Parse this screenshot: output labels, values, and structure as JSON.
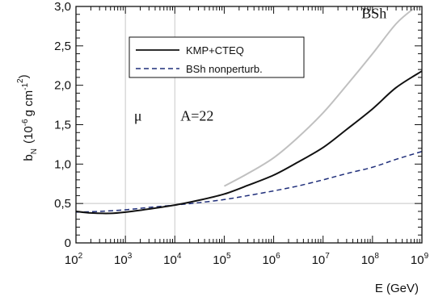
{
  "chart_data": {
    "type": "line",
    "title": "",
    "xlabel": "E (GeV)",
    "ylabel": {
      "main": "b",
      "sub": "N",
      "open": "(10",
      "exp": "-6",
      "unit_g": "g cm",
      "exp_g": "-1",
      "exp_cm": "2",
      "close": ")"
    },
    "x_scale": "log10",
    "xlim": [
      100,
      1000000000
    ],
    "ylim": [
      0,
      3.0
    ],
    "x_ticks": [
      {
        "base": "10",
        "exp": "2",
        "value": 100
      },
      {
        "base": "10",
        "exp": "3",
        "value": 1000
      },
      {
        "base": "10",
        "exp": "4",
        "value": 10000
      },
      {
        "base": "10",
        "exp": "5",
        "value": 100000
      },
      {
        "base": "10",
        "exp": "6",
        "value": 1000000
      },
      {
        "base": "10",
        "exp": "7",
        "value": 10000000
      },
      {
        "base": "10",
        "exp": "8",
        "value": 100000000
      },
      {
        "base": "10",
        "exp": "9",
        "value": 1000000000
      }
    ],
    "y_ticks": [
      {
        "label": "0",
        "value": 0
      },
      {
        "label": "0,5",
        "value": 0.5
      },
      {
        "label": "1,0",
        "value": 1.0
      },
      {
        "label": "1,5",
        "value": 1.5
      },
      {
        "label": "2,0",
        "value": 2.0
      },
      {
        "label": "2,5",
        "value": 2.5
      },
      {
        "label": "3,0",
        "value": 3.0
      }
    ],
    "grid": {
      "vertical_at": [
        1000,
        10000
      ],
      "horizontal_at": [
        0.5
      ]
    },
    "legend": {
      "placement": "top-left"
    },
    "annotations": [
      {
        "text": "μ",
        "x": 1500,
        "y": 1.55
      },
      {
        "text": "A=22",
        "x": 13000,
        "y": 1.55
      },
      {
        "text": "BSh",
        "x": 60000000,
        "y": 2.85
      }
    ],
    "series": [
      {
        "name": "KMP+CTEQ",
        "color": "#111111",
        "style": "solid",
        "x": [
          100,
          200,
          500,
          1000,
          3000,
          10000,
          30000,
          100000,
          300000,
          1000000,
          3000000,
          10000000,
          30000000,
          100000000,
          300000000,
          1000000000
        ],
        "y": [
          0.4,
          0.38,
          0.375,
          0.39,
          0.43,
          0.48,
          0.54,
          0.62,
          0.73,
          0.86,
          1.02,
          1.21,
          1.44,
          1.7,
          1.97,
          2.18
        ]
      },
      {
        "name": "BSh nonperturb.",
        "color": "#1f2e7a",
        "style": "dashed",
        "x": [
          100,
          300,
          1000,
          3000,
          10000,
          30000,
          100000,
          300000,
          1000000,
          3000000,
          10000000,
          30000000,
          100000000,
          300000000,
          1000000000
        ],
        "y": [
          0.39,
          0.4,
          0.42,
          0.45,
          0.48,
          0.51,
          0.55,
          0.6,
          0.66,
          0.72,
          0.8,
          0.88,
          0.96,
          1.06,
          1.16
        ]
      },
      {
        "name": "BSh",
        "color": "#c0c0c0",
        "style": "solid",
        "x": [
          100000,
          300000,
          1000000,
          3000000,
          10000000,
          30000000,
          100000000,
          300000000,
          700000000
        ],
        "y": [
          0.72,
          0.88,
          1.08,
          1.33,
          1.65,
          2.0,
          2.4,
          2.78,
          2.98
        ]
      }
    ]
  }
}
